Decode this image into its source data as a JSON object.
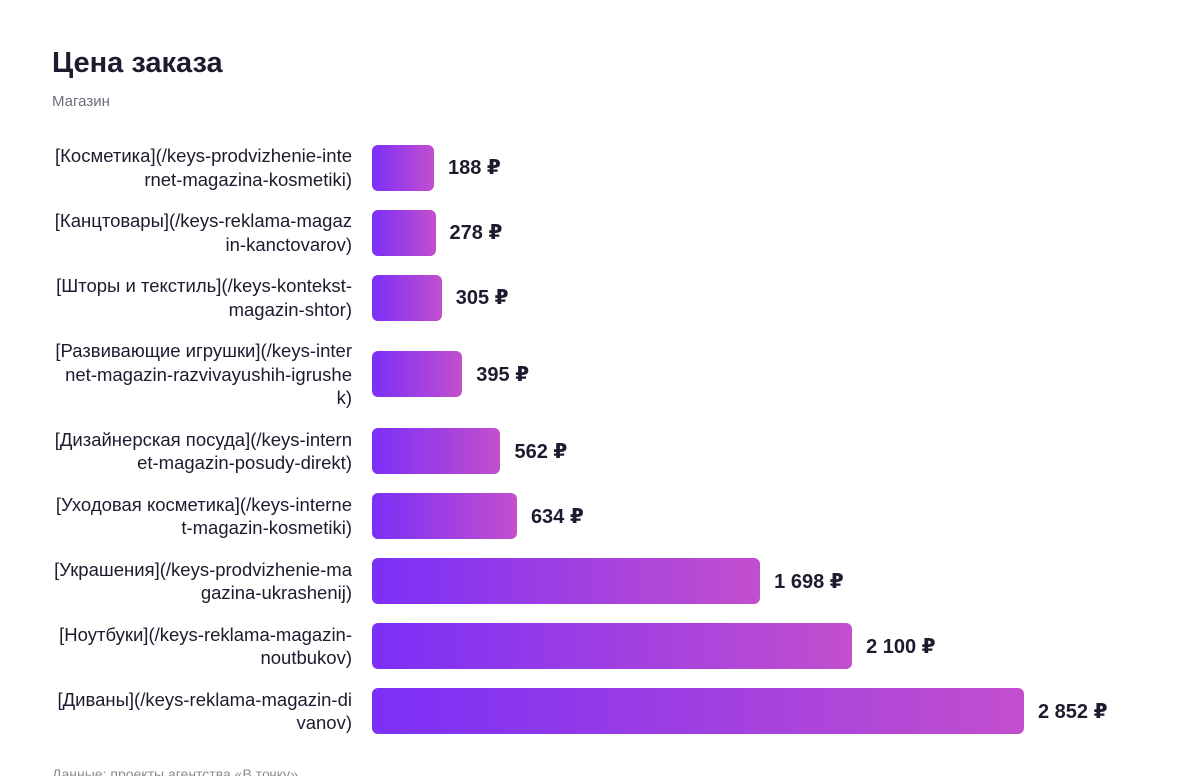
{
  "chart_data": {
    "type": "bar",
    "orientation": "horizontal",
    "title": "Цена заказа",
    "subtitle": "Магазин",
    "categories": [
      "[Косметика](/keys-prodvizhenie-internet-magazina-kosmetiki)",
      "[Канцтовары](/keys-reklama-magazin-kanctovarov)",
      "[Шторы и текстиль](/keys-kontekst-magazin-shtor)",
      "[Развивающие игрушки](/keys-internet-magazin-razvivayushih-igrushek)",
      "[Дизайнерская посуда](/keys-internet-magazin-posudy-direkt)",
      "[Уходовая косметика](/keys-internet-magazin-kosmetiki)",
      "[Украшения](/keys-prodvizhenie-magazina-ukrashenij)",
      "[Ноутбуки](/keys-reklama-magazin-noutbukov)",
      "[Диваны](/keys-reklama-magazin-divanov)"
    ],
    "values": [
      188,
      278,
      305,
      395,
      562,
      634,
      1698,
      2100,
      2852
    ],
    "value_labels": [
      "188 ₽",
      "278 ₽",
      "305 ₽",
      "395 ₽",
      "562 ₽",
      "634 ₽",
      "1 698 ₽",
      "2 100 ₽",
      "2 852 ₽"
    ],
    "colors": [
      "#7b2ff7",
      "#c24fcd"
    ],
    "source": "Данные: проекты агентства «В точку»"
  }
}
